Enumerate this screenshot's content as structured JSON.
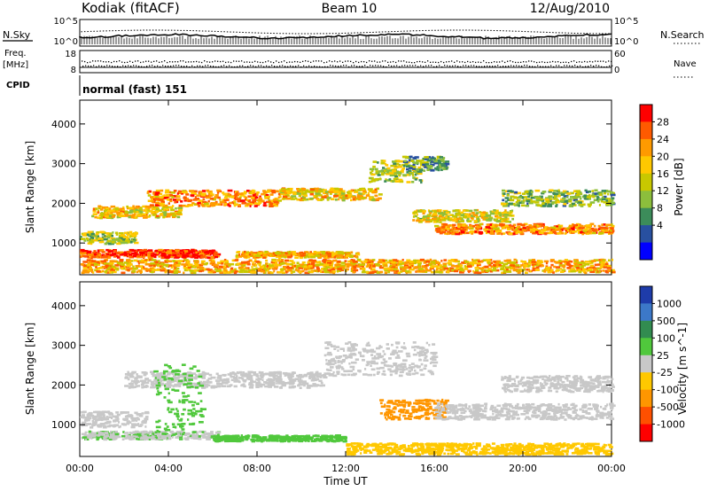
{
  "header": {
    "station": "Kodiak (fitACF)",
    "beam": "Beam 10",
    "date": "12/Aug/2010"
  },
  "top_panels": {
    "nsky_label": "N.Sky",
    "nsearch_label": "N.Search",
    "nsky_ticks": [
      "10^5",
      "10^0"
    ],
    "nsearch_ticks": [
      "10^5",
      "10^0"
    ],
    "freq_label_line1": "Freq.",
    "freq_label_line2": "[MHz]",
    "freq_ticks": [
      "18",
      "8"
    ],
    "nave_label": "Nave",
    "nave_ticks": [
      "60",
      "0"
    ],
    "cpid_label": "CPID",
    "cpid_value": "normal (fast) 151"
  },
  "chart_data": [
    {
      "type": "heatmap",
      "panel": "power",
      "ylabel": "Slant Range [km]",
      "yticks": [
        1000,
        2000,
        3000,
        4000
      ],
      "ylim": [
        200,
        4600
      ],
      "xlim": [
        0,
        24
      ],
      "colorbar": {
        "label": "Power [dB]",
        "ticks": [
          "28",
          "24",
          "20",
          "16",
          "12",
          "8",
          "4"
        ],
        "colors": [
          "#ff0000",
          "#ff5a00",
          "#ff9a00",
          "#ffc800",
          "#c8c800",
          "#8cbe3c",
          "#3c8c5a",
          "#2850a0",
          "#0000ff"
        ]
      },
      "bands": [
        {
          "t0": 0.0,
          "t1": 6.2,
          "r0": 600,
          "r1": 800,
          "level": 26
        },
        {
          "t0": 0.5,
          "t1": 4.5,
          "r0": 1600,
          "r1": 1900,
          "level": 18
        },
        {
          "t0": 3.0,
          "t1": 9.0,
          "r0": 1900,
          "r1": 2300,
          "level": 22
        },
        {
          "t0": 9.0,
          "t1": 13.5,
          "r0": 2050,
          "r1": 2350,
          "level": 18
        },
        {
          "t0": 13.0,
          "t1": 15.5,
          "r0": 2500,
          "r1": 3050,
          "level": 14
        },
        {
          "t0": 14.5,
          "t1": 16.5,
          "r0": 2800,
          "r1": 3150,
          "level": 10
        },
        {
          "t0": 7.0,
          "t1": 12.5,
          "r0": 600,
          "r1": 750,
          "level": 20
        },
        {
          "t0": 16.0,
          "t1": 24.0,
          "r0": 1200,
          "r1": 1450,
          "level": 22
        },
        {
          "t0": 15.0,
          "t1": 19.5,
          "r0": 1500,
          "r1": 1800,
          "level": 16
        },
        {
          "t0": 0.0,
          "t1": 24.0,
          "r0": 220,
          "r1": 550,
          "level": 20
        },
        {
          "t0": 0.0,
          "t1": 2.5,
          "r0": 950,
          "r1": 1250,
          "level": 14
        },
        {
          "t0": 19.0,
          "t1": 24.0,
          "r0": 1900,
          "r1": 2300,
          "level": 12
        }
      ]
    },
    {
      "type": "heatmap",
      "panel": "velocity",
      "ylabel": "Slant Range [km]",
      "xlabel": "Time UT",
      "xticks": [
        "00:00",
        "04:00",
        "08:00",
        "12:00",
        "16:00",
        "20:00",
        "00:00"
      ],
      "yticks": [
        1000,
        2000,
        3000,
        4000
      ],
      "ylim": [
        200,
        4600
      ],
      "xlim": [
        0,
        24
      ],
      "colorbar": {
        "label": "Velocity [m s^-1]",
        "ticks": [
          "1000",
          "500",
          "100",
          "25",
          "-25",
          "-100",
          "-500",
          "-1000"
        ],
        "colors": [
          "#1e3caa",
          "#3c78c8",
          "#328c50",
          "#50c83c",
          "#c8c8c8",
          "#ffc800",
          "#ff9600",
          "#ff5000",
          "#ff0000"
        ]
      },
      "bands": [
        {
          "t0": 0.0,
          "t1": 6.2,
          "r0": 600,
          "r1": 800,
          "level": 20
        },
        {
          "t0": 2.0,
          "t1": 11.0,
          "r0": 1900,
          "r1": 2300,
          "level": 0
        },
        {
          "t0": 11.0,
          "t1": 16.0,
          "r0": 2200,
          "r1": 3050,
          "level": 0
        },
        {
          "t0": 3.3,
          "t1": 5.5,
          "r0": 700,
          "r1": 2500,
          "level": 60
        },
        {
          "t0": 6.0,
          "t1": 12.0,
          "r0": 550,
          "r1": 700,
          "level": 60
        },
        {
          "t0": 13.5,
          "t1": 16.5,
          "r0": 1100,
          "r1": 1600,
          "level": -200
        },
        {
          "t0": 16.0,
          "t1": 24.0,
          "r0": 1100,
          "r1": 1500,
          "level": 0
        },
        {
          "t0": 12.0,
          "t1": 24.0,
          "r0": 220,
          "r1": 500,
          "level": -60
        },
        {
          "t0": 0.0,
          "t1": 3.0,
          "r0": 900,
          "r1": 1300,
          "level": 0
        },
        {
          "t0": 19.0,
          "t1": 24.0,
          "r0": 1800,
          "r1": 2200,
          "level": 0
        }
      ]
    }
  ]
}
